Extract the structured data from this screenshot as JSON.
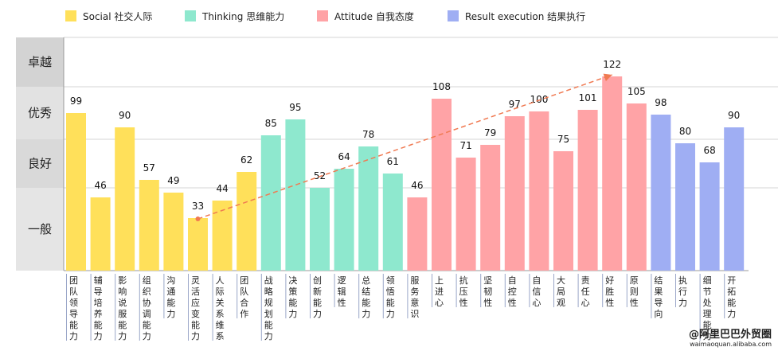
{
  "legend": [
    {
      "label": "Social 社交人际",
      "color": "#FFE05A"
    },
    {
      "label": "Thinking 思维能力",
      "color": "#8EE8CE"
    },
    {
      "label": "Attitude 自我态度",
      "color": "#FFA3A6"
    },
    {
      "label": "Result execution 结果执行",
      "color": "#9FAEF3"
    }
  ],
  "watermark": {
    "line1": "@阿里巴巴外贸圈",
    "line2": "waimaoquan.alibaba.com"
  },
  "chart_data": {
    "type": "bar",
    "levels": [
      "卓越",
      "优秀",
      "良好",
      "一般"
    ],
    "categories": [
      "团队领导能力",
      "辅导培养能力",
      "影响说服能力",
      "组织协调能力",
      "沟通能力",
      "灵活应变能力",
      "人际关系维系",
      "团队合作",
      "战略规划能力",
      "决策能力",
      "创新能力",
      "逻辑性",
      "总结能力",
      "领悟能力",
      "服务意识",
      "上进心",
      "抗压性",
      "坚韧性",
      "自控性",
      "自信心",
      "大局观",
      "责任心",
      "好胜性",
      "原则性",
      "结果导向",
      "执行力",
      "细节处理能力",
      "开拓能力"
    ],
    "values": [
      99,
      46,
      90,
      57,
      49,
      33,
      44,
      62,
      85,
      95,
      52,
      64,
      78,
      61,
      46,
      108,
      71,
      79,
      97,
      100,
      75,
      101,
      122,
      105,
      98,
      80,
      68,
      90
    ],
    "groups": [
      0,
      0,
      0,
      0,
      0,
      0,
      0,
      0,
      1,
      1,
      1,
      1,
      1,
      1,
      2,
      2,
      2,
      2,
      2,
      2,
      2,
      2,
      2,
      2,
      3,
      3,
      3,
      3
    ],
    "trend_arrow": {
      "from_category": "灵活应变能力",
      "to_category": "好胜性"
    },
    "ylim": [
      0,
      130
    ]
  }
}
